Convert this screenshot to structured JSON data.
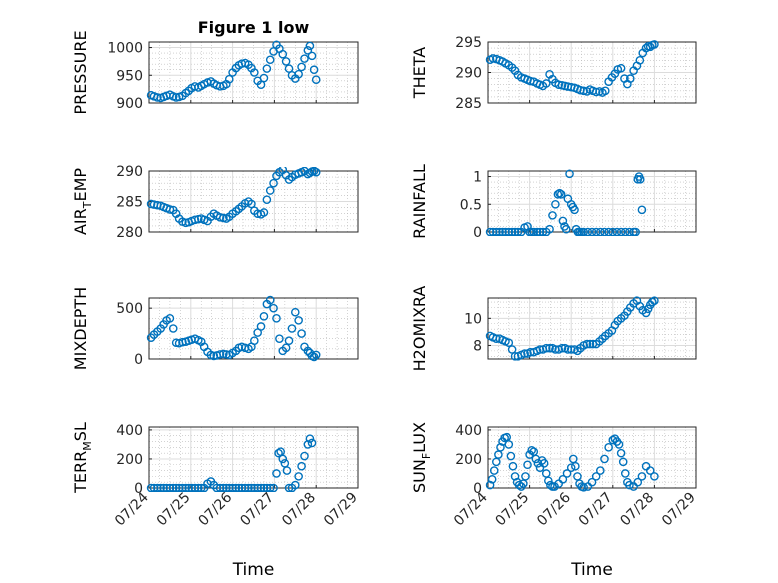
{
  "figure": {
    "background": "#ffffff",
    "marker_color": "#0072bd"
  },
  "chart_data": [
    {
      "type": "scatter",
      "title": "Figure 1 low",
      "ylabel": "PRESSURE",
      "ylabel_sub": "",
      "ylabel_post": "",
      "xlabel": "",
      "xlim": [
        "07/24",
        "07/29"
      ],
      "ylim": [
        900,
        1010
      ],
      "yticks": [
        "900",
        "950",
        "1000"
      ],
      "ytick_values": [
        900,
        950,
        1000
      ],
      "xticks": [
        "07/24",
        "07/25",
        "07/26",
        "07/27",
        "07/28",
        "07/29"
      ],
      "show_xticklabels": false,
      "grid": true,
      "minor_grid": true,
      "x": [
        0.05,
        0.12,
        0.2,
        0.28,
        0.35,
        0.42,
        0.5,
        0.58,
        0.65,
        0.72,
        0.8,
        0.88,
        0.95,
        1.02,
        1.1,
        1.18,
        1.25,
        1.32,
        1.4,
        1.48,
        1.55,
        1.62,
        1.7,
        1.78,
        1.85,
        1.92,
        2.0,
        2.08,
        2.15,
        2.22,
        2.3,
        2.38,
        2.45,
        2.52,
        2.6,
        2.68,
        2.75,
        2.82,
        2.9,
        2.98,
        3.05,
        3.12,
        3.2,
        3.28,
        3.35,
        3.42,
        3.5,
        3.58,
        3.65,
        3.72,
        3.8,
        3.85,
        3.9,
        3.95,
        4.0
      ],
      "y": [
        914,
        912,
        910,
        909,
        911,
        913,
        915,
        912,
        910,
        911,
        913,
        918,
        922,
        927,
        930,
        928,
        931,
        934,
        937,
        939,
        935,
        932,
        930,
        931,
        934,
        943,
        955,
        963,
        968,
        971,
        972,
        969,
        963,
        955,
        940,
        933,
        945,
        962,
        978,
        993,
        1005,
        998,
        988,
        975,
        962,
        950,
        944,
        952,
        965,
        980,
        995,
        1003,
        985,
        960,
        942
      ]
    },
    {
      "type": "scatter",
      "title": "",
      "ylabel": "THETA",
      "ylabel_sub": "",
      "ylabel_post": "",
      "xlabel": "",
      "xlim": [
        "07/24",
        "07/29"
      ],
      "ylim": [
        285,
        295
      ],
      "yticks": [
        "285",
        "290",
        "295"
      ],
      "ytick_values": [
        285,
        290,
        295
      ],
      "xticks": [
        "07/24",
        "07/25",
        "07/26",
        "07/27",
        "07/28",
        "07/29"
      ],
      "show_xticklabels": false,
      "grid": true,
      "minor_grid": true,
      "x": [
        0.05,
        0.12,
        0.2,
        0.28,
        0.35,
        0.42,
        0.5,
        0.58,
        0.65,
        0.72,
        0.8,
        0.88,
        0.95,
        1.02,
        1.1,
        1.18,
        1.25,
        1.32,
        1.4,
        1.48,
        1.55,
        1.62,
        1.7,
        1.78,
        1.85,
        1.92,
        2.0,
        2.08,
        2.15,
        2.22,
        2.3,
        2.38,
        2.45,
        2.52,
        2.6,
        2.68,
        2.75,
        2.82,
        2.9,
        2.98,
        3.05,
        3.12,
        3.2,
        3.28,
        3.35,
        3.42,
        3.5,
        3.58,
        3.65,
        3.72,
        3.8,
        3.85,
        3.9,
        3.95,
        4.0
      ],
      "y": [
        292.1,
        292.3,
        292.2,
        292.0,
        291.8,
        291.5,
        291.2,
        290.8,
        290.3,
        289.6,
        289.2,
        289.0,
        288.8,
        288.6,
        288.5,
        288.2,
        288.0,
        287.8,
        288.2,
        289.7,
        288.9,
        288.3,
        288.0,
        287.9,
        287.8,
        287.7,
        287.6,
        287.5,
        287.3,
        287.1,
        287.0,
        286.9,
        287.2,
        287.0,
        286.8,
        286.9,
        286.7,
        287.0,
        288.5,
        289.2,
        289.8,
        290.5,
        290.7,
        289.0,
        288.1,
        289.0,
        290.3,
        291.1,
        292.0,
        293.2,
        294.0,
        294.3,
        294.2,
        294.5,
        294.6
      ]
    },
    {
      "type": "scatter",
      "title": "",
      "ylabel": "AIR",
      "ylabel_sub": "T",
      "ylabel_post": "EMP",
      "xlabel": "",
      "xlim": [
        "07/24",
        "07/29"
      ],
      "ylim": [
        280,
        290
      ],
      "yticks": [
        "280",
        "285",
        "290"
      ],
      "ytick_values": [
        280,
        285,
        290
      ],
      "xticks": [
        "07/24",
        "07/25",
        "07/26",
        "07/27",
        "07/28",
        "07/29"
      ],
      "show_xticklabels": false,
      "grid": true,
      "minor_grid": true,
      "x": [
        0.05,
        0.12,
        0.2,
        0.28,
        0.35,
        0.42,
        0.5,
        0.58,
        0.65,
        0.72,
        0.8,
        0.88,
        0.95,
        1.02,
        1.1,
        1.18,
        1.25,
        1.32,
        1.4,
        1.48,
        1.55,
        1.62,
        1.7,
        1.78,
        1.85,
        1.92,
        2.0,
        2.08,
        2.15,
        2.22,
        2.3,
        2.38,
        2.45,
        2.52,
        2.6,
        2.68,
        2.75,
        2.82,
        2.9,
        2.98,
        3.05,
        3.12,
        3.2,
        3.28,
        3.35,
        3.42,
        3.5,
        3.58,
        3.65,
        3.72,
        3.8,
        3.85,
        3.9,
        3.95,
        4.0
      ],
      "y": [
        284.6,
        284.5,
        284.4,
        284.3,
        284.1,
        283.9,
        283.7,
        283.6,
        283.0,
        282.2,
        281.7,
        281.5,
        281.6,
        281.8,
        282.0,
        282.1,
        282.2,
        282.0,
        281.8,
        282.5,
        283.0,
        282.7,
        282.4,
        282.3,
        282.2,
        282.5,
        283.0,
        283.4,
        283.8,
        284.2,
        284.7,
        285.0,
        284.6,
        283.5,
        283.0,
        282.9,
        283.2,
        285.3,
        286.8,
        288.0,
        289.2,
        289.8,
        290.2,
        289.3,
        288.6,
        289.0,
        289.4,
        289.6,
        289.8,
        290.0,
        289.5,
        289.7,
        289.9,
        290.0,
        289.8
      ]
    },
    {
      "type": "scatter",
      "title": "",
      "ylabel": "RAINFALL",
      "ylabel_sub": "",
      "ylabel_post": "",
      "xlabel": "",
      "xlim": [
        "07/24",
        "07/29"
      ],
      "ylim": [
        0,
        1.1
      ],
      "yticks": [
        "0",
        "0.5",
        "1"
      ],
      "ytick_values": [
        0,
        0.5,
        1
      ],
      "xticks": [
        "07/24",
        "07/25",
        "07/26",
        "07/27",
        "07/28",
        "07/29"
      ],
      "show_xticklabels": false,
      "grid": true,
      "minor_grid": true,
      "x": [
        0.05,
        0.12,
        0.2,
        0.28,
        0.35,
        0.42,
        0.5,
        0.58,
        0.65,
        0.72,
        0.8,
        0.88,
        0.95,
        1.0,
        1.05,
        1.1,
        1.18,
        1.25,
        1.32,
        1.4,
        1.48,
        1.55,
        1.62,
        1.68,
        1.72,
        1.76,
        1.8,
        1.84,
        1.88,
        1.92,
        1.96,
        2.0,
        2.04,
        2.08,
        2.12,
        2.16,
        2.2,
        2.25,
        2.3,
        2.4,
        2.5,
        2.6,
        2.7,
        2.8,
        2.9,
        3.0,
        3.1,
        3.2,
        3.3,
        3.4,
        3.5,
        3.55,
        3.6,
        3.63,
        3.66,
        3.7
      ],
      "y": [
        0,
        0,
        0,
        0,
        0,
        0,
        0,
        0,
        0,
        0,
        0,
        0.08,
        0.1,
        0,
        0,
        0,
        0,
        0,
        0,
        0,
        0.05,
        0.3,
        0.5,
        0.68,
        0.7,
        0.68,
        0.2,
        0.1,
        0.05,
        0.6,
        1.05,
        0.5,
        0.45,
        0.4,
        0.05,
        0,
        0,
        0,
        0,
        0,
        0,
        0,
        0,
        0,
        0,
        0,
        0,
        0,
        0,
        0,
        0,
        0,
        0.95,
        1.0,
        0.95,
        0.4
      ]
    },
    {
      "type": "scatter",
      "title": "",
      "ylabel": "MIXDEPTH",
      "ylabel_sub": "",
      "ylabel_post": "",
      "xlabel": "",
      "xlim": [
        "07/24",
        "07/29"
      ],
      "ylim": [
        0,
        600
      ],
      "yticks": [
        "0",
        "500"
      ],
      "ytick_values": [
        0,
        500
      ],
      "xticks": [
        "07/24",
        "07/25",
        "07/26",
        "07/27",
        "07/28",
        "07/29"
      ],
      "show_xticklabels": false,
      "grid": true,
      "minor_grid": true,
      "x": [
        0.05,
        0.12,
        0.2,
        0.28,
        0.35,
        0.42,
        0.5,
        0.58,
        0.65,
        0.72,
        0.8,
        0.88,
        0.95,
        1.02,
        1.1,
        1.18,
        1.25,
        1.32,
        1.4,
        1.48,
        1.55,
        1.62,
        1.7,
        1.78,
        1.85,
        1.92,
        2.0,
        2.08,
        2.15,
        2.22,
        2.3,
        2.38,
        2.45,
        2.52,
        2.6,
        2.68,
        2.75,
        2.82,
        2.9,
        2.98,
        3.05,
        3.12,
        3.2,
        3.28,
        3.35,
        3.42,
        3.5,
        3.58,
        3.65,
        3.72,
        3.8,
        3.85,
        3.9,
        3.95,
        4.0
      ],
      "y": [
        210,
        240,
        270,
        300,
        340,
        380,
        400,
        300,
        160,
        155,
        165,
        170,
        180,
        190,
        200,
        185,
        170,
        120,
        70,
        40,
        30,
        35,
        45,
        50,
        45,
        40,
        60,
        80,
        110,
        120,
        110,
        100,
        120,
        180,
        260,
        320,
        420,
        540,
        580,
        500,
        400,
        200,
        80,
        110,
        180,
        300,
        460,
        380,
        250,
        120,
        80,
        60,
        30,
        20,
        40
      ]
    },
    {
      "type": "scatter",
      "title": "",
      "ylabel": "H2OMIXRA",
      "ylabel_sub": "",
      "ylabel_post": "",
      "xlabel": "",
      "xlim": [
        "07/24",
        "07/29"
      ],
      "ylim": [
        7,
        11.5
      ],
      "yticks": [
        "8",
        "10"
      ],
      "ytick_values": [
        8,
        10
      ],
      "xticks": [
        "07/24",
        "07/25",
        "07/26",
        "07/27",
        "07/28",
        "07/29"
      ],
      "show_xticklabels": false,
      "grid": true,
      "minor_grid": true,
      "x": [
        0.05,
        0.12,
        0.2,
        0.28,
        0.35,
        0.42,
        0.5,
        0.58,
        0.65,
        0.72,
        0.8,
        0.88,
        0.95,
        1.02,
        1.1,
        1.18,
        1.25,
        1.32,
        1.4,
        1.48,
        1.55,
        1.62,
        1.7,
        1.78,
        1.85,
        1.92,
        2.0,
        2.08,
        2.15,
        2.22,
        2.3,
        2.38,
        2.45,
        2.52,
        2.6,
        2.68,
        2.75,
        2.82,
        2.9,
        2.98,
        3.05,
        3.12,
        3.2,
        3.28,
        3.35,
        3.42,
        3.5,
        3.58,
        3.65,
        3.72,
        3.8,
        3.85,
        3.9,
        3.95,
        4.0
      ],
      "y": [
        8.7,
        8.6,
        8.5,
        8.5,
        8.4,
        8.3,
        8.2,
        7.7,
        7.2,
        7.2,
        7.3,
        7.4,
        7.4,
        7.5,
        7.5,
        7.6,
        7.7,
        7.7,
        7.8,
        7.8,
        7.8,
        7.7,
        7.7,
        7.8,
        7.8,
        7.7,
        7.7,
        7.7,
        7.6,
        7.8,
        8.0,
        8.1,
        8.1,
        8.1,
        8.1,
        8.3,
        8.5,
        8.7,
        8.9,
        9.1,
        9.5,
        9.8,
        10.0,
        10.2,
        10.5,
        10.8,
        11.1,
        11.3,
        10.9,
        10.6,
        10.4,
        10.7,
        11.0,
        11.2,
        11.3
      ]
    },
    {
      "type": "scatter",
      "title": "",
      "ylabel": "TERR",
      "ylabel_sub": "M",
      "ylabel_post": "SL",
      "xlabel": "Time",
      "xlim": [
        "07/24",
        "07/29"
      ],
      "ylim": [
        0,
        420
      ],
      "yticks": [
        "0",
        "200",
        "400"
      ],
      "ytick_values": [
        0,
        200,
        400
      ],
      "xticks": [
        "07/24",
        "07/25",
        "07/26",
        "07/27",
        "07/28",
        "07/29"
      ],
      "show_xticklabels": true,
      "grid": true,
      "minor_grid": true,
      "x": [
        0.05,
        0.12,
        0.2,
        0.28,
        0.35,
        0.42,
        0.5,
        0.58,
        0.65,
        0.72,
        0.8,
        0.88,
        0.95,
        1.02,
        1.1,
        1.18,
        1.25,
        1.32,
        1.4,
        1.48,
        1.55,
        1.62,
        1.7,
        1.78,
        1.85,
        1.92,
        2.0,
        2.08,
        2.15,
        2.22,
        2.3,
        2.38,
        2.45,
        2.52,
        2.6,
        2.68,
        2.75,
        2.82,
        2.9,
        2.98,
        3.05,
        3.1,
        3.15,
        3.2,
        3.25,
        3.3,
        3.35,
        3.42,
        3.5,
        3.58,
        3.65,
        3.72,
        3.8,
        3.85,
        3.9
      ],
      "y": [
        0,
        0,
        0,
        0,
        0,
        0,
        0,
        0,
        0,
        0,
        0,
        0,
        0,
        0,
        0,
        0,
        0,
        0,
        30,
        45,
        20,
        0,
        0,
        0,
        0,
        0,
        0,
        0,
        0,
        0,
        0,
        0,
        0,
        0,
        0,
        0,
        0,
        0,
        0,
        0,
        100,
        240,
        250,
        200,
        170,
        120,
        0,
        0,
        20,
        80,
        150,
        220,
        300,
        340,
        310
      ]
    },
    {
      "type": "scatter",
      "title": "",
      "ylabel": "SUN",
      "ylabel_sub": "F",
      "ylabel_post": "LUX",
      "xlabel": "Time",
      "xlim": [
        "07/24",
        "07/29"
      ],
      "ylim": [
        0,
        420
      ],
      "yticks": [
        "0",
        "200",
        "400"
      ],
      "ytick_values": [
        0,
        200,
        400
      ],
      "xticks": [
        "07/24",
        "07/25",
        "07/26",
        "07/27",
        "07/28",
        "07/29"
      ],
      "show_xticklabels": true,
      "grid": true,
      "minor_grid": true,
      "x": [
        0.05,
        0.1,
        0.15,
        0.2,
        0.25,
        0.3,
        0.35,
        0.4,
        0.45,
        0.5,
        0.55,
        0.6,
        0.65,
        0.7,
        0.75,
        0.8,
        0.85,
        0.9,
        0.95,
        1.0,
        1.05,
        1.1,
        1.15,
        1.2,
        1.25,
        1.3,
        1.35,
        1.4,
        1.45,
        1.5,
        1.55,
        1.6,
        1.7,
        1.8,
        1.9,
        2.0,
        2.05,
        2.1,
        2.15,
        2.2,
        2.25,
        2.3,
        2.4,
        2.5,
        2.6,
        2.7,
        2.8,
        2.9,
        3.0,
        3.05,
        3.1,
        3.15,
        3.2,
        3.25,
        3.3,
        3.35,
        3.4,
        3.5,
        3.6,
        3.7,
        3.8,
        3.9,
        4.0
      ],
      "y": [
        20,
        60,
        120,
        180,
        230,
        280,
        320,
        345,
        350,
        300,
        220,
        150,
        80,
        40,
        20,
        10,
        30,
        80,
        160,
        230,
        260,
        250,
        200,
        170,
        140,
        190,
        170,
        100,
        50,
        20,
        10,
        10,
        30,
        60,
        100,
        140,
        200,
        150,
        80,
        30,
        10,
        5,
        10,
        40,
        80,
        120,
        200,
        280,
        330,
        340,
        320,
        300,
        240,
        180,
        100,
        40,
        20,
        10,
        40,
        80,
        150,
        120,
        80
      ]
    }
  ]
}
